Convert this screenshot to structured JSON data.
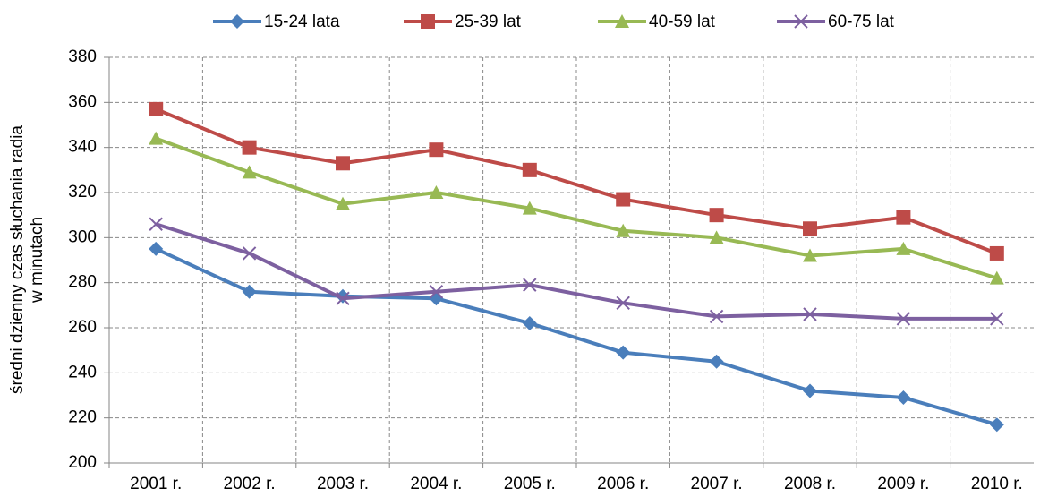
{
  "chart_data": {
    "type": "line",
    "ylabel": [
      "średni dzienny czas słuchania radia",
      "w minutach"
    ],
    "categories": [
      "2001 r.",
      "2002 r.",
      "2003 r.",
      "2004 r.",
      "2005 r.",
      "2006 r.",
      "2007 r.",
      "2008 r.",
      "2009 r.",
      "2010 r."
    ],
    "series": [
      {
        "name": "15-24 lata",
        "color": "#4a7ebb",
        "marker": "diamond",
        "values": [
          295,
          276,
          274,
          273,
          262,
          249,
          245,
          232,
          229,
          217
        ]
      },
      {
        "name": "25-39 lat",
        "color": "#be4b48",
        "marker": "square",
        "values": [
          357,
          340,
          333,
          339,
          330,
          317,
          310,
          304,
          309,
          293
        ]
      },
      {
        "name": "40-59 lat",
        "color": "#98b954",
        "marker": "triangle",
        "values": [
          344,
          329,
          315,
          320,
          313,
          303,
          300,
          292,
          295,
          282
        ]
      },
      {
        "name": "60-75 lat",
        "color": "#7d60a0",
        "marker": "x",
        "values": [
          306,
          293,
          273,
          276,
          279,
          271,
          265,
          266,
          264,
          264
        ]
      }
    ],
    "ylim": [
      200,
      380
    ],
    "yticks": [
      200,
      220,
      240,
      260,
      280,
      300,
      320,
      340,
      360,
      380
    ],
    "grid": true,
    "legend": "top"
  }
}
